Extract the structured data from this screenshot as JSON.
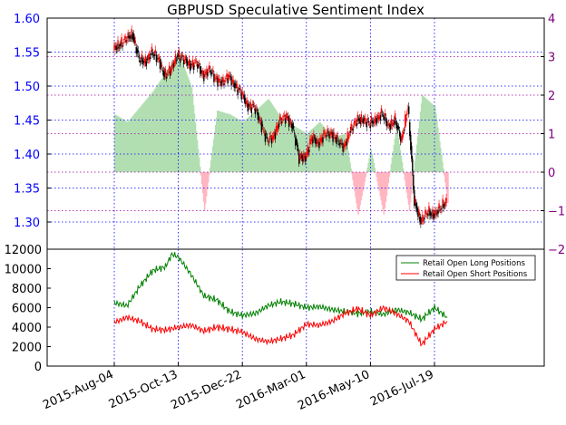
{
  "chart_data": [
    {
      "type": "candlestick",
      "title": "GBPUSD Speculative Sentiment Index",
      "ylim": [
        1.26,
        1.6
      ],
      "y_ticks": [
        "1.30",
        "1.35",
        "1.40",
        "1.45",
        "1.50",
        "1.55",
        "1.60"
      ],
      "secondary_ylim": [
        -2,
        4
      ],
      "secondary_y_ticks": [
        "−2",
        "−1",
        "0",
        "1",
        "2",
        "3",
        "4"
      ],
      "grid": true,
      "colors": {
        "primary_axis": "#0000ff",
        "secondary_axis": "#800080",
        "up_candle": "#ff0000",
        "down_candle": "#000000",
        "ssi_positive": "#b2dfb2",
        "ssi_negative": "#ffb6c1",
        "h_grid": "#a000a0",
        "v_grid": "#0000ff"
      },
      "x_dates": [
        "2015-Aug-04",
        "2015-Oct-13",
        "2015-Dec-22",
        "2016-Mar-01",
        "2016-May-10",
        "2016-Jul-19"
      ],
      "price_close": [
        {
          "date": "2015-Aug-04",
          "value": 1.555
        },
        {
          "date": "2015-Aug-11",
          "value": 1.56
        },
        {
          "date": "2015-Aug-18",
          "value": 1.57
        },
        {
          "date": "2015-Aug-25",
          "value": 1.575
        },
        {
          "date": "2015-Sep-01",
          "value": 1.54
        },
        {
          "date": "2015-Sep-08",
          "value": 1.535
        },
        {
          "date": "2015-Sep-15",
          "value": 1.55
        },
        {
          "date": "2015-Sep-22",
          "value": 1.54
        },
        {
          "date": "2015-Sep-29",
          "value": 1.515
        },
        {
          "date": "2015-Oct-06",
          "value": 1.525
        },
        {
          "date": "2015-Oct-13",
          "value": 1.545
        },
        {
          "date": "2015-Oct-20",
          "value": 1.54
        },
        {
          "date": "2015-Oct-27",
          "value": 1.53
        },
        {
          "date": "2015-Nov-03",
          "value": 1.535
        },
        {
          "date": "2015-Nov-10",
          "value": 1.515
        },
        {
          "date": "2015-Nov-17",
          "value": 1.525
        },
        {
          "date": "2015-Nov-24",
          "value": 1.51
        },
        {
          "date": "2015-Dec-01",
          "value": 1.505
        },
        {
          "date": "2015-Dec-08",
          "value": 1.515
        },
        {
          "date": "2015-Dec-15",
          "value": 1.5
        },
        {
          "date": "2015-Dec-22",
          "value": 1.49
        },
        {
          "date": "2015-Dec-29",
          "value": 1.47
        },
        {
          "date": "2016-Jan-05",
          "value": 1.47
        },
        {
          "date": "2016-Jan-12",
          "value": 1.445
        },
        {
          "date": "2016-Jan-19",
          "value": 1.42
        },
        {
          "date": "2016-Jan-26",
          "value": 1.425
        },
        {
          "date": "2016-Feb-02",
          "value": 1.45
        },
        {
          "date": "2016-Feb-09",
          "value": 1.455
        },
        {
          "date": "2016-Feb-16",
          "value": 1.44
        },
        {
          "date": "2016-Feb-23",
          "value": 1.395
        },
        {
          "date": "2016-Mar-01",
          "value": 1.395
        },
        {
          "date": "2016-Mar-08",
          "value": 1.425
        },
        {
          "date": "2016-Mar-15",
          "value": 1.415
        },
        {
          "date": "2016-Mar-22",
          "value": 1.43
        },
        {
          "date": "2016-Mar-29",
          "value": 1.43
        },
        {
          "date": "2016-Apr-05",
          "value": 1.42
        },
        {
          "date": "2016-Apr-12",
          "value": 1.41
        },
        {
          "date": "2016-Apr-19",
          "value": 1.435
        },
        {
          "date": "2016-Apr-26",
          "value": 1.45
        },
        {
          "date": "2016-May-03",
          "value": 1.45
        },
        {
          "date": "2016-May-10",
          "value": 1.445
        },
        {
          "date": "2016-May-17",
          "value": 1.45
        },
        {
          "date": "2016-May-24",
          "value": 1.46
        },
        {
          "date": "2016-May-31",
          "value": 1.44
        },
        {
          "date": "2016-Jun-07",
          "value": 1.45
        },
        {
          "date": "2016-Jun-14",
          "value": 1.42
        },
        {
          "date": "2016-Jun-21",
          "value": 1.47
        },
        {
          "date": "2016-Jun-28",
          "value": 1.33
        },
        {
          "date": "2016-Jul-05",
          "value": 1.3
        },
        {
          "date": "2016-Jul-12",
          "value": 1.315
        },
        {
          "date": "2016-Jul-19",
          "value": 1.31
        },
        {
          "date": "2016-Jul-26",
          "value": 1.32
        },
        {
          "date": "2016-Aug-02",
          "value": 1.33
        }
      ],
      "ssi": [
        {
          "date": "2015-Aug-04",
          "value": 1.5
        },
        {
          "date": "2015-Aug-18",
          "value": 1.3
        },
        {
          "date": "2015-Sep-01",
          "value": 1.7
        },
        {
          "date": "2015-Sep-15",
          "value": 2.1
        },
        {
          "date": "2015-Sep-29",
          "value": 2.6
        },
        {
          "date": "2015-Oct-13",
          "value": 3.1
        },
        {
          "date": "2015-Oct-27",
          "value": 2.2
        },
        {
          "date": "2015-Nov-10",
          "value": -1.0
        },
        {
          "date": "2015-Nov-24",
          "value": 1.6
        },
        {
          "date": "2015-Dec-08",
          "value": 1.5
        },
        {
          "date": "2015-Dec-22",
          "value": 1.3
        },
        {
          "date": "2016-Jan-05",
          "value": 1.6
        },
        {
          "date": "2016-Jan-19",
          "value": 1.9
        },
        {
          "date": "2016-Feb-02",
          "value": 1.4
        },
        {
          "date": "2016-Feb-16",
          "value": 1.2
        },
        {
          "date": "2016-Mar-01",
          "value": 1.0
        },
        {
          "date": "2016-Mar-15",
          "value": 1.3
        },
        {
          "date": "2016-Mar-29",
          "value": 0.9
        },
        {
          "date": "2016-Apr-12",
          "value": 1.0
        },
        {
          "date": "2016-Apr-26",
          "value": -1.1
        },
        {
          "date": "2016-May-10",
          "value": 0.6
        },
        {
          "date": "2016-May-24",
          "value": -1.1
        },
        {
          "date": "2016-Jun-07",
          "value": 1.2
        },
        {
          "date": "2016-Jun-21",
          "value": -1.0
        },
        {
          "date": "2016-Jul-05",
          "value": 2.0
        },
        {
          "date": "2016-Jul-19",
          "value": 1.7
        },
        {
          "date": "2016-Aug-02",
          "value": -0.8
        }
      ]
    },
    {
      "type": "line",
      "ylim": [
        0,
        12000
      ],
      "y_ticks": [
        "0",
        "2000",
        "4000",
        "6000",
        "8000",
        "10000",
        "12000"
      ],
      "x_dates": [
        "2015-Aug-04",
        "2015-Oct-13",
        "2015-Dec-22",
        "2016-Mar-01",
        "2016-May-10",
        "2016-Jul-19"
      ],
      "legend_position": "upper right",
      "series": [
        {
          "name": "Retail Open Long Positions",
          "color": "#008000",
          "points": [
            {
              "date": "2015-Aug-04",
              "value": 6500
            },
            {
              "date": "2015-Aug-18",
              "value": 6200
            },
            {
              "date": "2015-Sep-01",
              "value": 8200
            },
            {
              "date": "2015-Sep-15",
              "value": 9800
            },
            {
              "date": "2015-Sep-29",
              "value": 10200
            },
            {
              "date": "2015-Oct-06",
              "value": 11500
            },
            {
              "date": "2015-Oct-13",
              "value": 11200
            },
            {
              "date": "2015-Oct-27",
              "value": 9400
            },
            {
              "date": "2015-Nov-10",
              "value": 7200
            },
            {
              "date": "2015-Nov-24",
              "value": 6800
            },
            {
              "date": "2015-Dec-08",
              "value": 5600
            },
            {
              "date": "2015-Dec-22",
              "value": 5200
            },
            {
              "date": "2016-Jan-05",
              "value": 5400
            },
            {
              "date": "2016-Jan-19",
              "value": 6200
            },
            {
              "date": "2016-Feb-02",
              "value": 6600
            },
            {
              "date": "2016-Feb-16",
              "value": 6400
            },
            {
              "date": "2016-Mar-01",
              "value": 6000
            },
            {
              "date": "2016-Mar-15",
              "value": 6100
            },
            {
              "date": "2016-Mar-29",
              "value": 5800
            },
            {
              "date": "2016-Apr-12",
              "value": 5600
            },
            {
              "date": "2016-Apr-26",
              "value": 5400
            },
            {
              "date": "2016-May-10",
              "value": 5600
            },
            {
              "date": "2016-May-24",
              "value": 5300
            },
            {
              "date": "2016-Jun-07",
              "value": 5800
            },
            {
              "date": "2016-Jun-21",
              "value": 5500
            },
            {
              "date": "2016-Jul-05",
              "value": 4800
            },
            {
              "date": "2016-Jul-19",
              "value": 6000
            },
            {
              "date": "2016-Aug-02",
              "value": 5000
            }
          ]
        },
        {
          "name": "Retail Open Short Positions",
          "color": "#ff0000",
          "points": [
            {
              "date": "2015-Aug-04",
              "value": 4500
            },
            {
              "date": "2015-Aug-18",
              "value": 5000
            },
            {
              "date": "2015-Sep-01",
              "value": 4600
            },
            {
              "date": "2015-Sep-15",
              "value": 3800
            },
            {
              "date": "2015-Sep-29",
              "value": 3700
            },
            {
              "date": "2015-Oct-13",
              "value": 4000
            },
            {
              "date": "2015-Oct-27",
              "value": 4200
            },
            {
              "date": "2015-Nov-10",
              "value": 3600
            },
            {
              "date": "2015-Nov-24",
              "value": 4000
            },
            {
              "date": "2015-Dec-08",
              "value": 3800
            },
            {
              "date": "2015-Dec-22",
              "value": 3500
            },
            {
              "date": "2016-Jan-05",
              "value": 2800
            },
            {
              "date": "2016-Jan-19",
              "value": 2500
            },
            {
              "date": "2016-Feb-02",
              "value": 2800
            },
            {
              "date": "2016-Feb-16",
              "value": 3200
            },
            {
              "date": "2016-Mar-01",
              "value": 4300
            },
            {
              "date": "2016-Mar-15",
              "value": 4200
            },
            {
              "date": "2016-Mar-29",
              "value": 4600
            },
            {
              "date": "2016-Apr-12",
              "value": 5400
            },
            {
              "date": "2016-Apr-26",
              "value": 5900
            },
            {
              "date": "2016-May-10",
              "value": 5200
            },
            {
              "date": "2016-May-24",
              "value": 6000
            },
            {
              "date": "2016-Jun-07",
              "value": 5400
            },
            {
              "date": "2016-Jun-21",
              "value": 4600
            },
            {
              "date": "2016-Jul-05",
              "value": 2200
            },
            {
              "date": "2016-Jul-19",
              "value": 3800
            },
            {
              "date": "2016-Aug-02",
              "value": 4600
            }
          ]
        }
      ]
    }
  ]
}
